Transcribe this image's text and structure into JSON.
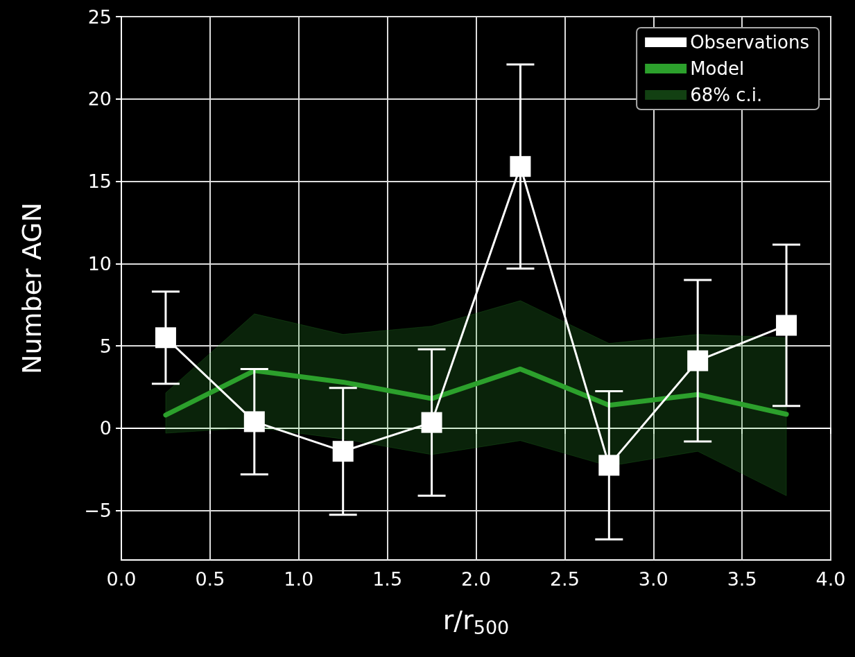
{
  "chart_data": {
    "type": "line",
    "xlabel": "r/r$_{500}$",
    "ylabel": "Number AGN",
    "x": [
      0.25,
      0.75,
      1.25,
      1.75,
      2.25,
      2.75,
      3.25,
      3.75
    ],
    "series": [
      {
        "name": "Observations",
        "color": "#ffffff",
        "marker": "square",
        "values": [
          5.5,
          0.4,
          -1.4,
          0.35,
          15.9,
          -2.25,
          4.1,
          6.25
        ],
        "errors": [
          2.8,
          3.2,
          3.85,
          4.45,
          6.2,
          4.5,
          4.9,
          4.9
        ]
      },
      {
        "name": "Model",
        "color": "#2ca02c",
        "marker": "none",
        "values": [
          0.8,
          3.5,
          2.8,
          1.8,
          3.6,
          1.4,
          2.05,
          0.85
        ]
      },
      {
        "name": "68% c.i.",
        "type": "area",
        "color": "#2ca02c",
        "values": [
          null,
          null,
          null,
          null,
          null,
          null,
          null,
          null
        ],
        "lower": [
          -0.3,
          0.05,
          -0.65,
          -1.6,
          -0.75,
          -2.3,
          -1.4,
          -4.1
        ],
        "upper": [
          2.15,
          6.95,
          5.7,
          6.2,
          7.75,
          5.15,
          5.7,
          5.5
        ]
      }
    ],
    "xlim": [
      0,
      4
    ],
    "xticks": [
      {
        "value": 0,
        "label": "0.0"
      },
      0.5,
      {
        "value": 1,
        "label": "1.0"
      },
      1.5,
      {
        "value": 2,
        "label": "2.0"
      },
      2.5,
      {
        "value": 3,
        "label": "3.0"
      },
      3.5,
      {
        "value": 4,
        "label": "4.0"
      }
    ],
    "ylim": [
      -8,
      25
    ],
    "yticks": [
      -5,
      0,
      5,
      10,
      15,
      20,
      25
    ],
    "grid": true,
    "legend": "top right"
  }
}
